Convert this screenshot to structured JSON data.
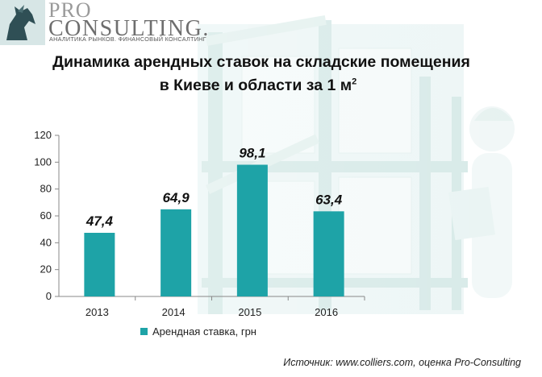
{
  "logo": {
    "pro": "PRO",
    "consulting": "CONSULTING.",
    "tagline": "АНАЛИТИКА РЫНКОВ. ФИНАНСОВЫЙ КОНСАЛТИНГ"
  },
  "chart_data": {
    "type": "bar",
    "title_line1": "Динамика арендных ставок на складские помещения",
    "title_line2": "в Киеве и области за 1 м",
    "title_sup": "2",
    "categories": [
      "2013",
      "2014",
      "2015",
      "2016"
    ],
    "series": [
      {
        "name": "Арендная ставка, грн",
        "values": [
          47.4,
          64.9,
          98.1,
          63.4
        ]
      }
    ],
    "value_labels": [
      "47,4",
      "64,9",
      "98,1",
      "63,4"
    ],
    "yticks": [
      "0",
      "20",
      "40",
      "60",
      "80",
      "100",
      "120"
    ],
    "ylim": [
      0,
      120
    ],
    "grid": false,
    "legend_position": "bottom-left",
    "bar_color": "#1ea3a7"
  },
  "source": "Источник: www.colliers.com, оценка Pro-Consulting"
}
